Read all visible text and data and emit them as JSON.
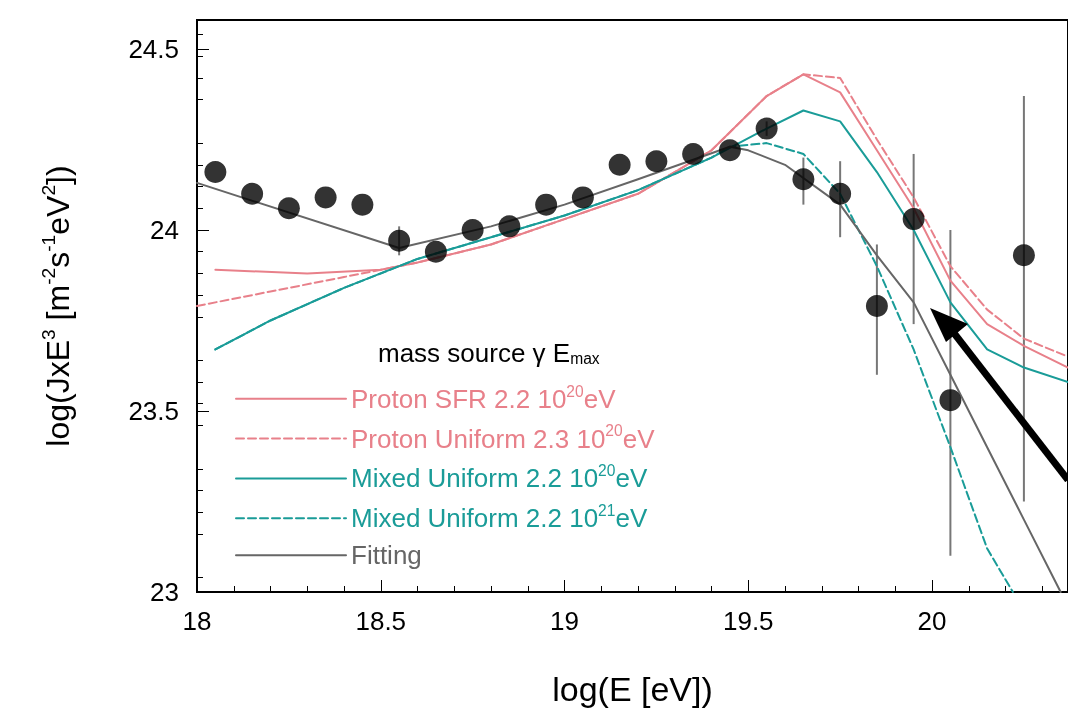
{
  "chart_data": {
    "type": "line",
    "xlabel": "log(E [eV])",
    "ylabel": "log(JxE$^{3}$ [m$^{-2}$s$^{-1}$eV$^{2}$])",
    "legend_title": "mass source γ E$_{max}$",
    "xlim": [
      18,
      20.37
    ],
    "xticks": [
      18,
      18.5,
      19,
      19.5,
      20
    ],
    "ylim": [
      23,
      24.58
    ],
    "yticks": [
      23,
      23.5,
      24,
      24.5
    ],
    "grid": false,
    "legend": "bottom left",
    "series": [
      {
        "name": "Proton SFR 2.2 10$^{20}$eV",
        "line_style": "solid",
        "color": "#e8808a",
        "x": [
          18.05,
          18.3,
          18.5,
          18.6,
          18.8,
          19.0,
          19.2,
          19.4,
          19.55,
          19.65,
          19.75,
          19.85,
          19.95,
          20.05,
          20.15,
          20.25,
          20.37
        ],
        "values": [
          23.89,
          23.88,
          23.89,
          23.91,
          23.96,
          24.03,
          24.1,
          24.22,
          24.37,
          24.43,
          24.38,
          24.22,
          24.06,
          23.86,
          23.74,
          23.68,
          23.62
        ]
      },
      {
        "name": "Proton Uniform 2.3 10$^{20}$eV",
        "line_style": "dashed",
        "color": "#e8808a",
        "x": [
          18.0,
          18.2,
          18.4,
          18.5,
          18.6,
          18.8,
          19.0,
          19.2,
          19.4,
          19.55,
          19.65,
          19.75,
          19.85,
          19.95,
          20.05,
          20.15,
          20.25,
          20.37
        ],
        "values": [
          23.79,
          23.83,
          23.87,
          23.89,
          23.91,
          23.96,
          24.03,
          24.1,
          24.22,
          24.37,
          24.43,
          24.42,
          24.25,
          24.09,
          23.9,
          23.78,
          23.7,
          23.65
        ]
      },
      {
        "name": "Mixed Uniform 2.2 10$^{20}$eV",
        "line_style": "solid",
        "color": "#1a9c98",
        "x": [
          18.05,
          18.2,
          18.4,
          18.6,
          18.8,
          19.0,
          19.2,
          19.4,
          19.55,
          19.65,
          19.75,
          19.85,
          19.95,
          20.05,
          20.15,
          20.25,
          20.37
        ],
        "values": [
          23.67,
          23.75,
          23.84,
          23.92,
          23.98,
          24.04,
          24.11,
          24.2,
          24.28,
          24.33,
          24.3,
          24.16,
          24.0,
          23.8,
          23.67,
          23.62,
          23.58
        ]
      },
      {
        "name": "Mixed Uniform 2.2 10$^{21}$eV",
        "line_style": "dashed",
        "color": "#1a9c98",
        "x": [
          18.05,
          18.2,
          18.4,
          18.6,
          18.8,
          19.0,
          19.2,
          19.4,
          19.45,
          19.55,
          19.65,
          19.75,
          19.85,
          19.95,
          20.05,
          20.15,
          20.22
        ],
        "values": [
          23.67,
          23.75,
          23.84,
          23.92,
          23.98,
          24.04,
          24.11,
          24.2,
          24.23,
          24.24,
          24.21,
          24.1,
          23.9,
          23.67,
          23.4,
          23.12,
          23.0
        ]
      },
      {
        "name": "Fitting",
        "line_style": "solid",
        "color": "#666666",
        "x": [
          18.0,
          18.55,
          18.8,
          19.0,
          19.2,
          19.45,
          19.5,
          19.6,
          19.75,
          19.85,
          19.95,
          20.05,
          20.15,
          20.25,
          20.35
        ],
        "values": [
          24.13,
          23.95,
          24.01,
          24.07,
          24.14,
          24.23,
          24.22,
          24.18,
          24.07,
          23.93,
          23.8,
          23.6,
          23.4,
          23.2,
          23.0
        ]
      },
      {
        "type": "scatter",
        "marker": "circle",
        "color": "#000000",
        "x": [
          18.05,
          18.15,
          18.25,
          18.35,
          18.45,
          18.55,
          18.65,
          18.75,
          18.85,
          18.95,
          19.05,
          19.15,
          19.25,
          19.35,
          19.45,
          19.55,
          19.65,
          19.75,
          19.85,
          19.95,
          20.05,
          20.25
        ],
        "values": [
          24.16,
          24.1,
          24.06,
          24.09,
          24.07,
          23.97,
          23.94,
          24.0,
          24.01,
          24.07,
          24.09,
          24.18,
          24.19,
          24.21,
          24.22,
          24.28,
          24.14,
          24.1,
          23.79,
          24.03,
          23.53,
          23.93
        ],
        "errors": [
          null,
          null,
          null,
          null,
          null,
          [
            23.93,
            24.01
          ],
          null,
          null,
          null,
          null,
          null,
          null,
          null,
          null,
          null,
          [
            24.26,
            24.3
          ],
          [
            24.07,
            24.2
          ],
          [
            23.98,
            24.19
          ],
          [
            23.6,
            23.96
          ],
          [
            23.74,
            24.21
          ],
          [
            23.1,
            24.0
          ],
          [
            23.25,
            24.37
          ]
        ]
      }
    ]
  }
}
